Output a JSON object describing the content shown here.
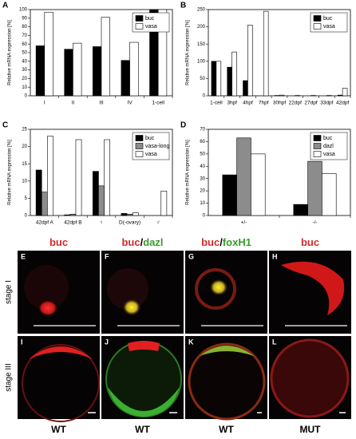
{
  "chart_data": [
    {
      "type": "bar",
      "panel": "A",
      "ylabel": "Relative mRNA expression [%]",
      "categories": [
        "I",
        "II",
        "III",
        "IV",
        "1-cell"
      ],
      "series": [
        {
          "name": "buc",
          "color": "#000000",
          "values": [
            58,
            54,
            57,
            41,
            100
          ]
        },
        {
          "name": "vasa",
          "color": "#ffffff",
          "values": [
            97,
            61,
            91,
            62,
            100
          ]
        }
      ],
      "ylim": [
        0,
        100
      ],
      "yticks": [
        0,
        10,
        20,
        30,
        40,
        50,
        60,
        70,
        80,
        90,
        100
      ],
      "legend": "upper right"
    },
    {
      "type": "bar",
      "panel": "B",
      "ylabel": "Relative mRNA expression [%]",
      "categories": [
        "1-cell",
        "3hpf",
        "4hpf",
        "7hpf",
        "30hpf",
        "22dpf",
        "27dpf",
        "33dpf",
        "42dpf"
      ],
      "series": [
        {
          "name": "buc",
          "color": "#000000",
          "values": [
            100,
            83,
            44,
            0,
            1,
            0,
            0,
            0,
            2
          ]
        },
        {
          "name": "vasa",
          "color": "#ffffff",
          "values": [
            100,
            127,
            205,
            245,
            2,
            1,
            1,
            1,
            22
          ]
        }
      ],
      "ylim": [
        0,
        250
      ],
      "yticks": [
        0,
        50,
        100,
        150,
        200,
        250
      ],
      "legend": "upper right"
    },
    {
      "type": "bar",
      "panel": "C",
      "ylabel": "Relative mRNA expression [%]",
      "categories": [
        "42dpf A",
        "42dpf B",
        "♀",
        "D(-ovary)",
        "♂"
      ],
      "series": [
        {
          "name": "buc",
          "color": "#000000",
          "values": [
            13.2,
            0.2,
            12.8,
            0.6,
            0
          ]
        },
        {
          "name": "vasa-long",
          "color": "#8c8c8c",
          "values": [
            6.8,
            0.4,
            8.6,
            0.4,
            0
          ]
        },
        {
          "name": "vasa",
          "color": "#ffffff",
          "values": [
            23,
            22,
            22,
            0.8,
            7.1
          ]
        }
      ],
      "ylim": [
        0,
        25
      ],
      "yticks": [
        0,
        5,
        10,
        15,
        20,
        25
      ],
      "legend": "upper right"
    },
    {
      "type": "bar",
      "panel": "D",
      "ylabel": "Relative mRNA expression [%]",
      "categories": [
        "+/-",
        "-/-"
      ],
      "series": [
        {
          "name": "buc",
          "color": "#000000",
          "values": [
            33,
            9
          ]
        },
        {
          "name": "dazl",
          "color": "#8c8c8c",
          "values": [
            63,
            44
          ]
        },
        {
          "name": "vasa",
          "color": "#ffffff",
          "values": [
            50,
            34
          ]
        }
      ],
      "ylim": [
        0,
        70
      ],
      "yticks": [
        0,
        10,
        20,
        30,
        40,
        50,
        60,
        70
      ],
      "legend": "upper right"
    }
  ],
  "images": {
    "titles": [
      [
        {
          "text": "buc",
          "color": "#d42a2a"
        }
      ],
      [
        {
          "text": "buc",
          "color": "#d42a2a"
        },
        {
          "text": "/",
          "color": "#000000"
        },
        {
          "text": "dazl",
          "color": "#3a9a2a"
        }
      ],
      [
        {
          "text": "buc",
          "color": "#d42a2a"
        },
        {
          "text": "/",
          "color": "#000000"
        },
        {
          "text": "foxH1",
          "color": "#3a9a2a"
        }
      ],
      [
        {
          "text": "buc",
          "color": "#d42a2a"
        }
      ]
    ],
    "letters": [
      "E",
      "F",
      "G",
      "H",
      "I",
      "J",
      "K",
      "L"
    ],
    "rows": [
      "stage I",
      "stage III"
    ],
    "genotypes": [
      "WT",
      "WT",
      "WT",
      "MUT"
    ]
  }
}
